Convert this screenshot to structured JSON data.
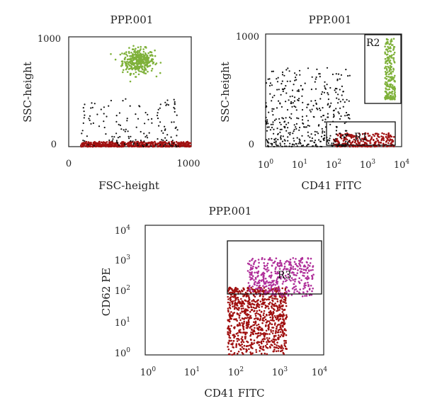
{
  "colors": {
    "green": "#7fb13a",
    "red": "#a01010",
    "black": "#111111",
    "magenta": "#b0309a"
  },
  "chart_data": [
    {
      "type": "scatter",
      "title": "PPP.001",
      "xlabel": "FSC-height",
      "ylabel": "SSC-height",
      "x_scale": "linear",
      "y_scale": "linear",
      "xlim": [
        0,
        1000
      ],
      "ylim": [
        0,
        1000
      ],
      "x_ticks": [
        "0",
        "1000"
      ],
      "y_ticks": [
        "0",
        "1000"
      ],
      "series": [
        {
          "color": "green",
          "center": [
            570,
            780
          ],
          "spread": [
            130,
            110
          ],
          "count": 360
        },
        {
          "color": "red",
          "x_range": [
            100,
            1000
          ],
          "y_range": [
            0,
            45
          ],
          "count": 500
        },
        {
          "color": "black",
          "x_range": [
            100,
            900
          ],
          "y_range": [
            0,
            450
          ],
          "count": 150
        }
      ]
    },
    {
      "type": "scatter",
      "title": "PPP.001",
      "xlabel": "CD41 FITC",
      "ylabel": "SSC-height",
      "x_scale": "log",
      "y_scale": "linear",
      "xlim": [
        1,
        10000
      ],
      "ylim": [
        0,
        1000
      ],
      "x_ticks": [
        {
          "base": "10",
          "exp": "0"
        },
        {
          "base": "10",
          "exp": "1"
        },
        {
          "base": "10",
          "exp": "2"
        },
        {
          "base": "10",
          "exp": "3"
        },
        {
          "base": "10",
          "exp": "4"
        }
      ],
      "y_ticks": [
        "0",
        "1000"
      ],
      "gates": [
        {
          "label": "R2",
          "x": [
            2500,
            9000
          ],
          "y": [
            380,
            980
          ]
        },
        {
          "label": "R1",
          "x": [
            70,
            8000
          ],
          "y": [
            0,
            200
          ]
        }
      ],
      "series": [
        {
          "color": "green",
          "x_range": [
            3200,
            6500
          ],
          "y_range": [
            420,
            960
          ],
          "count": 220
        },
        {
          "color": "red",
          "x_range": [
            100,
            6000
          ],
          "y_range": [
            0,
            120
          ],
          "count": 260
        },
        {
          "color": "black",
          "x_range": [
            1,
            300
          ],
          "y_range": [
            0,
            700
          ],
          "count": 420
        }
      ]
    },
    {
      "type": "scatter",
      "title": "PPP.001",
      "xlabel": "CD41 FITC",
      "ylabel": "CD62 PE",
      "x_scale": "log",
      "y_scale": "log",
      "xlim": [
        1,
        10000
      ],
      "ylim": [
        1,
        10000
      ],
      "x_ticks": [
        {
          "base": "10",
          "exp": "0"
        },
        {
          "base": "10",
          "exp": "1"
        },
        {
          "base": "10",
          "exp": "2"
        },
        {
          "base": "10",
          "exp": "3"
        },
        {
          "base": "10",
          "exp": "4"
        }
      ],
      "y_ticks": [
        {
          "base": "10",
          "exp": "0"
        },
        {
          "base": "10",
          "exp": "1"
        },
        {
          "base": "10",
          "exp": "2"
        },
        {
          "base": "10",
          "exp": "3"
        },
        {
          "base": "10",
          "exp": "4"
        }
      ],
      "gates": [
        {
          "label": "R3",
          "x": [
            60,
            10000
          ],
          "y": [
            60,
            2200
          ]
        }
      ],
      "series": [
        {
          "color": "red",
          "x_range": [
            70,
            1500
          ],
          "y_range": [
            1,
            120
          ],
          "count": 900
        },
        {
          "color": "magenta",
          "x_range": [
            200,
            6000
          ],
          "y_range": [
            60,
            1000
          ],
          "count": 380
        }
      ]
    }
  ]
}
